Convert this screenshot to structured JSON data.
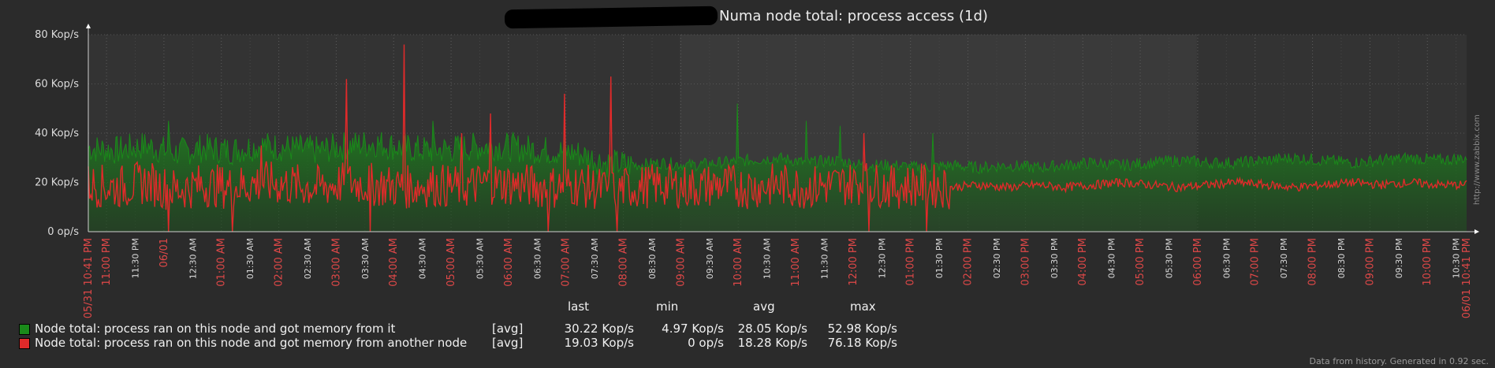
{
  "title": "Numa node total: process access (1d)",
  "chart_data": {
    "type": "area",
    "title": "Numa node total: process access (1d)",
    "y_ticks": [
      "80 Kop/s",
      "60 Kop/s",
      "40 Kop/s",
      "20 Kop/s",
      "0 op/s"
    ],
    "ylim": [
      0,
      80
    ],
    "y_unit": "Kop/s",
    "x_start_label": "05/31 10:41 PM",
    "x_end_label": "06/01 10:41 PM",
    "x_ticks": [
      "11:00 PM",
      "11:30 PM",
      "06/01",
      "12:30 AM",
      "01:00 AM",
      "01:30 AM",
      "02:00 AM",
      "02:30 AM",
      "03:00 AM",
      "03:30 AM",
      "04:00 AM",
      "04:30 AM",
      "05:00 AM",
      "05:30 AM",
      "06:00 AM",
      "06:30 AM",
      "07:00 AM",
      "07:30 AM",
      "08:00 AM",
      "08:30 AM",
      "09:00 AM",
      "09:30 AM",
      "10:00 AM",
      "10:30 AM",
      "11:00 AM",
      "11:30 AM",
      "12:00 PM",
      "12:30 PM",
      "01:00 PM",
      "01:30 PM",
      "02:00 PM",
      "02:30 PM",
      "03:00 PM",
      "03:30 PM",
      "04:00 PM",
      "04:30 PM",
      "05:00 PM",
      "05:30 PM",
      "06:00 PM",
      "06:30 PM",
      "07:00 PM",
      "07:30 PM",
      "08:00 PM",
      "08:30 PM",
      "09:00 PM",
      "09:30 PM",
      "10:00 PM",
      "10:30 PM"
    ],
    "x_tick_hours": [
      0.3167,
      0.8167,
      1.3167,
      1.8167,
      2.3167,
      2.8167,
      3.3167,
      3.8167,
      4.3167,
      4.8167,
      5.3167,
      5.8167,
      6.3167,
      6.8167,
      7.3167,
      7.8167,
      8.3167,
      8.8167,
      9.3167,
      9.8167,
      10.3167,
      10.8167,
      11.3167,
      11.8167,
      12.3167,
      12.8167,
      13.3167,
      13.8167,
      14.3167,
      14.8167,
      15.3167,
      15.8167,
      16.3167,
      16.8167,
      17.3167,
      17.8167,
      18.3167,
      18.8167,
      19.3167,
      19.8167,
      20.3167,
      20.8167,
      21.3167,
      21.8167,
      22.3167,
      22.8167,
      23.3167,
      23.8167
    ],
    "x_tick_red": [
      true,
      false,
      true,
      false,
      true,
      false,
      true,
      false,
      true,
      false,
      true,
      false,
      true,
      false,
      true,
      false,
      true,
      false,
      true,
      false,
      true,
      false,
      true,
      false,
      true,
      false,
      true,
      false,
      true,
      false,
      true,
      false,
      true,
      false,
      true,
      false,
      true,
      false,
      true,
      false,
      true,
      false,
      true,
      false,
      true,
      false,
      true,
      false
    ],
    "series": [
      {
        "name": "Node total: process ran on this node and got memory from it",
        "color": "#1a8a1a",
        "x_hours": [
          0,
          0.5,
          1,
          1.5,
          2,
          2.5,
          3,
          3.5,
          4,
          4.5,
          5,
          5.5,
          6,
          6.5,
          7,
          7.5,
          8,
          8.5,
          9,
          9.5,
          10,
          10.5,
          11,
          11.5,
          12,
          12.5,
          13,
          13.5,
          14,
          14.5,
          15,
          15.5,
          16,
          16.5,
          17,
          17.5,
          18,
          18.5,
          19,
          19.5,
          20,
          20.5,
          21,
          21.5,
          22,
          22.5,
          23,
          23.5,
          24
        ],
        "values": [
          34,
          33,
          35,
          32,
          34,
          33,
          35,
          34,
          33,
          35,
          36,
          34,
          33,
          34,
          35,
          34,
          33,
          32,
          28,
          27,
          28,
          27,
          28,
          29,
          30,
          28,
          29,
          27,
          27,
          26,
          27,
          26,
          27,
          26,
          27,
          28,
          27,
          28,
          29,
          28,
          28,
          29,
          30,
          29,
          28,
          29,
          30,
          29,
          30
        ],
        "spikes": [
          [
            1.4,
            45
          ],
          [
            6.0,
            45
          ],
          [
            11.3,
            52
          ],
          [
            12.5,
            45
          ],
          [
            13.1,
            43
          ],
          [
            14.7,
            40
          ]
        ],
        "last": "30.22 Kop/s",
        "min": "4.97 Kop/s",
        "avg": "28.05 Kop/s",
        "max": "52.98 Kop/s"
      },
      {
        "name": "Node total: process ran on this node and got memory from another node",
        "color": "#e02a2a",
        "x_hours": [
          0,
          0.5,
          1,
          1.5,
          2,
          2.5,
          3,
          3.5,
          4,
          4.5,
          5,
          5.5,
          6,
          6.5,
          7,
          7.5,
          8,
          8.5,
          9,
          9.5,
          10,
          10.5,
          11,
          11.5,
          12,
          12.5,
          13,
          13.5,
          14,
          14.5,
          15,
          15.5,
          16,
          16.5,
          17,
          17.5,
          18,
          18.5,
          19,
          19.5,
          20,
          20.5,
          21,
          21.5,
          22,
          22.5,
          23,
          23.5,
          24
        ],
        "values": [
          19,
          18,
          20,
          17,
          19,
          18,
          20,
          19,
          18,
          20,
          19,
          18,
          19,
          18,
          20,
          19,
          18,
          19,
          17,
          18,
          19,
          18,
          19,
          18,
          19,
          18,
          19,
          20,
          18,
          19,
          18,
          19,
          18,
          19,
          18,
          19,
          20,
          19,
          18,
          19,
          20,
          19,
          18,
          19,
          20,
          19,
          20,
          19,
          19
        ],
        "spikes": [
          [
            4.5,
            62
          ],
          [
            5.5,
            76
          ],
          [
            7.0,
            48
          ],
          [
            8.3,
            56
          ],
          [
            9.1,
            63
          ],
          [
            3.0,
            35
          ],
          [
            6.5,
            40
          ],
          [
            13.5,
            40
          ],
          [
            14.6,
            38
          ]
        ],
        "dips": [
          1.4,
          2.5,
          4.9,
          8.0,
          9.2,
          13.6,
          14.6
        ],
        "last": "19.03 Kop/s",
        "min": "0 op/s",
        "avg": "18.28 Kop/s",
        "max": "76.18 Kop/s"
      }
    ],
    "legend_headers": [
      "last",
      "min",
      "avg",
      "max"
    ],
    "legend_aggregate": "[avg]",
    "legend_placement": "bottom-left",
    "grid": true
  },
  "footer": "Data from history. Generated in 0.92 sec.",
  "side_link": "http://www.zabbix.com"
}
